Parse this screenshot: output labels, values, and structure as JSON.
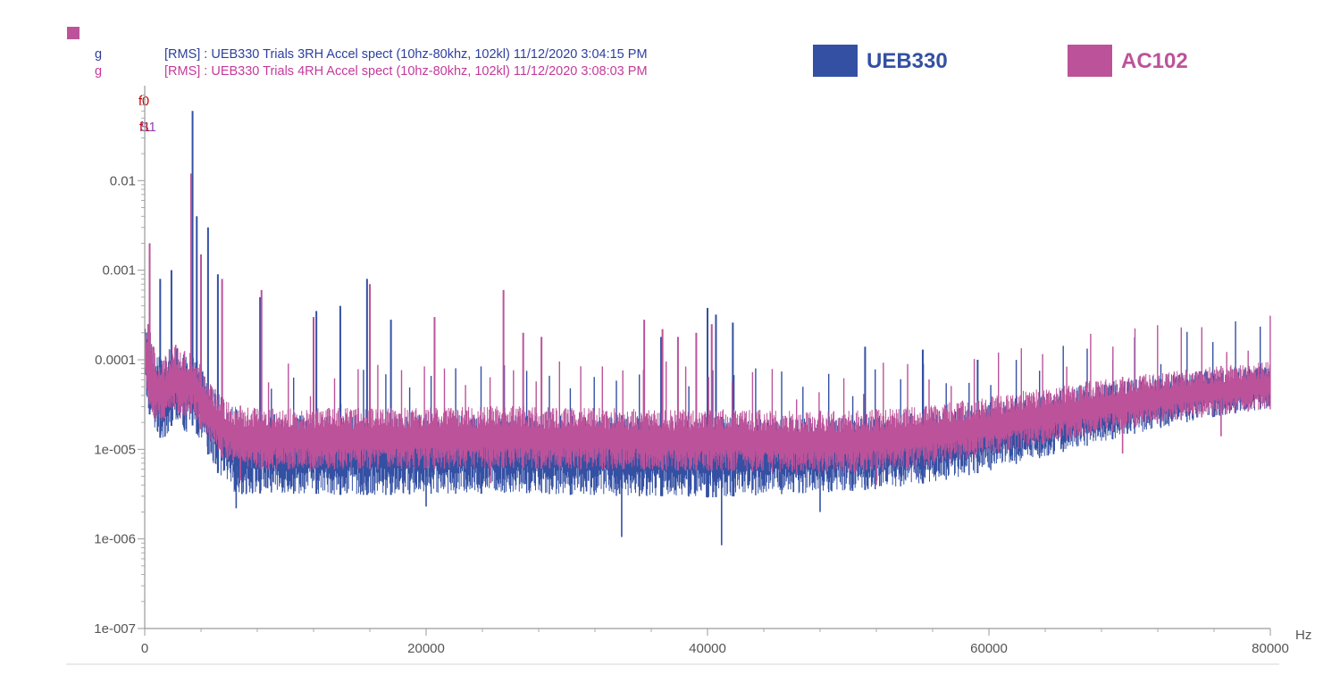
{
  "header": {
    "unit_1": "g",
    "unit_2": "g",
    "trace_1": "[RMS] : UEB330 Trials 3RH Accel spect (10hz-80khz, 102kl) 11/12/2020 3:04:15 PM",
    "trace_2": "[RMS] : UEB330 Trials 4RH Accel spect (10hz-80khz, 102kl) 11/12/2020 3:08:03 PM",
    "marker_f0": "f0",
    "marker_f1": "f1",
    "marker_s1": "S1"
  },
  "colors": {
    "ueb330": "#3450a3",
    "ac102": "#bc539a",
    "header_trace_1": "#2d3f9e",
    "header_trace_2": "#c43a9b",
    "marker_red": "#c00000",
    "marker_purple": "#8a3fb0",
    "axis": "#9a9a9a"
  },
  "chart_data": {
    "type": "line",
    "xlabel": "Hz",
    "ylabel": "",
    "xlim": [
      0,
      80000
    ],
    "ylim": [
      1e-07,
      0.1
    ],
    "y_scale": "log",
    "x_ticks": [
      0,
      20000,
      40000,
      60000,
      80000
    ],
    "x_tick_labels": [
      "0",
      "20000",
      "40000",
      "60000",
      "80000"
    ],
    "y_ticks": [
      1e-07,
      1e-06,
      1e-05,
      0.0001,
      0.001,
      0.01
    ],
    "y_tick_labels": [
      "1e-007",
      "1e-006",
      "1e-005",
      "0.0001",
      "0.001",
      "0.01"
    ],
    "grid": false,
    "legend_position": "top-right",
    "series": [
      {
        "name": "UEB330",
        "color": "#3450a3",
        "x": [
          0,
          200,
          500,
          800,
          1200,
          1600,
          2000,
          2500,
          3000,
          3300,
          3500,
          3800,
          4200,
          4800,
          5500,
          6000,
          6500,
          7000,
          8000,
          9000,
          10000,
          12000,
          14000,
          16000,
          18000,
          20000,
          22000,
          24000,
          26000,
          28000,
          30000,
          32000,
          34000,
          36000,
          38000,
          40000,
          42000,
          44000,
          46000,
          48000,
          50000,
          52000,
          54000,
          56000,
          58000,
          60000,
          62000,
          64000,
          66000,
          68000,
          70000,
          72000,
          74000,
          76000,
          78000,
          80000
        ],
        "low": [
          4e-05,
          3e-05,
          2e-05,
          1.5e-05,
          1.3e-05,
          1.4e-05,
          2e-05,
          1.6e-05,
          1.5e-05,
          2e-05,
          1.7e-05,
          1.4e-05,
          1.1e-05,
          7e-06,
          4.5e-06,
          3.5e-06,
          3.2e-06,
          3e-06,
          3.2e-06,
          3.3e-06,
          3.2e-06,
          3.2e-06,
          3.1e-06,
          3.1e-06,
          3.1e-06,
          3.2e-06,
          3.2e-06,
          3.2e-06,
          3.3e-06,
          3.2e-06,
          3.1e-06,
          3.1e-06,
          3e-06,
          3e-06,
          3e-06,
          2.9e-06,
          3e-06,
          3.1e-06,
          3.2e-06,
          3.3e-06,
          3.4e-06,
          3.6e-06,
          3.9e-06,
          4.3e-06,
          4.9e-06,
          5.8e-06,
          6.9e-06,
          8.3e-06,
          1e-05,
          1.2e-05,
          1.45e-05,
          1.7e-05,
          2e-05,
          2.3e-05,
          2.6e-05,
          2.9e-05
        ],
        "high": [
          0.0004,
          0.0003,
          0.00018,
          0.00012,
          0.0001,
          0.00012,
          0.00015,
          0.00013,
          0.00011,
          0.00012,
          0.00011,
          0.0001,
          8e-05,
          5.5e-05,
          4e-05,
          3.2e-05,
          2.8e-05,
          2.6e-05,
          2.5e-05,
          2.5e-05,
          2.4e-05,
          2.4e-05,
          2.4e-05,
          2.4e-05,
          2.4e-05,
          2.5e-05,
          2.5e-05,
          2.5e-05,
          2.6e-05,
          2.5e-05,
          2.4e-05,
          2.4e-05,
          2.4e-05,
          2.3e-05,
          2.3e-05,
          2.3e-05,
          2.3e-05,
          2.3e-05,
          2.3e-05,
          2.3e-05,
          2.3e-05,
          2.4e-05,
          2.5e-05,
          2.7e-05,
          3e-05,
          3.4e-05,
          3.8e-05,
          4.3e-05,
          4.9e-05,
          5.5e-05,
          6.1e-05,
          6.7e-05,
          7.3e-05,
          7.9e-05,
          8.5e-05,
          9e-05
        ],
        "peaks": [
          {
            "x": 350,
            "y": 0.0015
          },
          {
            "x": 1100,
            "y": 0.0008
          },
          {
            "x": 1900,
            "y": 0.001
          },
          {
            "x": 3400,
            "y": 0.06
          },
          {
            "x": 3700,
            "y": 0.004
          },
          {
            "x": 4500,
            "y": 0.003
          },
          {
            "x": 5200,
            "y": 0.0009
          },
          {
            "x": 8200,
            "y": 0.0005
          },
          {
            "x": 15800,
            "y": 0.0008
          },
          {
            "x": 12200,
            "y": 0.00035
          },
          {
            "x": 13900,
            "y": 0.0004
          },
          {
            "x": 17500,
            "y": 0.00028
          },
          {
            "x": 36700,
            "y": 0.00018
          },
          {
            "x": 40000,
            "y": 0.00038
          },
          {
            "x": 40600,
            "y": 0.00032
          },
          {
            "x": 41800,
            "y": 0.00026
          },
          {
            "x": 51200,
            "y": 0.00014
          },
          {
            "x": 55300,
            "y": 0.00013
          },
          {
            "x": 59200,
            "y": 0.0001
          }
        ],
        "dips": [
          {
            "x": 6500,
            "y": 2.2e-06
          },
          {
            "x": 20000,
            "y": 2.3e-06
          },
          {
            "x": 33900,
            "y": 1.05e-06
          },
          {
            "x": 41000,
            "y": 8.5e-07
          },
          {
            "x": 48000,
            "y": 2e-06
          }
        ]
      },
      {
        "name": "AC102",
        "color": "#bc539a",
        "x": [
          0,
          200,
          500,
          800,
          1200,
          1600,
          2000,
          2500,
          3000,
          3300,
          3500,
          3800,
          4200,
          4800,
          5500,
          6000,
          6500,
          7000,
          8000,
          9000,
          10000,
          12000,
          14000,
          16000,
          18000,
          20000,
          22000,
          24000,
          26000,
          28000,
          30000,
          32000,
          34000,
          36000,
          38000,
          40000,
          42000,
          44000,
          46000,
          48000,
          50000,
          52000,
          54000,
          56000,
          58000,
          60000,
          62000,
          64000,
          66000,
          68000,
          70000,
          72000,
          74000,
          76000,
          78000,
          80000
        ],
        "low": [
          5e-05,
          4e-05,
          2.5e-05,
          2e-05,
          1.8e-05,
          2e-05,
          2.5e-05,
          2.2e-05,
          2e-05,
          2.5e-05,
          2.3e-05,
          1.9e-05,
          1.5e-05,
          1.1e-05,
          8e-06,
          7e-06,
          6.5e-06,
          6.3e-06,
          6e-06,
          6e-06,
          6e-06,
          6e-06,
          6e-06,
          6e-06,
          6e-06,
          6.1e-06,
          6.1e-06,
          6.1e-06,
          6.2e-06,
          6.1e-06,
          6e-06,
          6e-06,
          6e-06,
          5.9e-06,
          5.8e-06,
          5.8e-06,
          5.7e-06,
          5.6e-06,
          5.5e-06,
          5.4e-06,
          5.4e-06,
          5.6e-06,
          6e-06,
          6.6e-06,
          7.5e-06,
          8.6e-06,
          1e-05,
          1.15e-05,
          1.33e-05,
          1.52e-05,
          1.72e-05,
          1.93e-05,
          2.15e-05,
          2.38e-05,
          2.6e-05,
          2.8e-05
        ],
        "high": [
          0.00035,
          0.00028,
          0.00017,
          0.00012,
          0.0001,
          0.00012,
          0.00016,
          0.00014,
          0.00012,
          0.00013,
          0.00012,
          0.0001,
          8e-05,
          5.5e-05,
          4e-05,
          3.5e-05,
          3.2e-05,
          3e-05,
          2.9e-05,
          2.9e-05,
          2.9e-05,
          2.9e-05,
          2.9e-05,
          2.9e-05,
          2.9e-05,
          3e-05,
          3e-05,
          3e-05,
          3.1e-05,
          3e-05,
          2.9e-05,
          2.9e-05,
          2.9e-05,
          2.8e-05,
          2.8e-05,
          2.8e-05,
          2.8e-05,
          2.8e-05,
          2.7e-05,
          2.7e-05,
          2.7e-05,
          2.8e-05,
          3e-05,
          3.2e-05,
          3.5e-05,
          3.9e-05,
          4.4e-05,
          4.9e-05,
          5.5e-05,
          6e-05,
          6.6e-05,
          7.2e-05,
          7.8e-05,
          8.4e-05,
          9e-05,
          9.5e-05
        ],
        "peaks": [
          {
            "x": 350,
            "y": 0.002
          },
          {
            "x": 3300,
            "y": 0.012
          },
          {
            "x": 4000,
            "y": 0.0015
          },
          {
            "x": 5500,
            "y": 0.0008
          },
          {
            "x": 8300,
            "y": 0.0006
          },
          {
            "x": 12000,
            "y": 0.0003
          },
          {
            "x": 16000,
            "y": 0.0007
          },
          {
            "x": 20600,
            "y": 0.0003
          },
          {
            "x": 25500,
            "y": 0.0006
          },
          {
            "x": 26900,
            "y": 0.0002
          },
          {
            "x": 28200,
            "y": 0.00018
          },
          {
            "x": 35500,
            "y": 0.00028
          },
          {
            "x": 36800,
            "y": 0.00022
          },
          {
            "x": 37900,
            "y": 0.00018
          },
          {
            "x": 39200,
            "y": 0.0002
          },
          {
            "x": 40300,
            "y": 0.00025
          }
        ],
        "dips": [
          {
            "x": 6800,
            "y": 4.5e-06
          },
          {
            "x": 24600,
            "y": 4.2e-06
          },
          {
            "x": 52000,
            "y": 4e-06
          },
          {
            "x": 69500,
            "y": 9e-06
          },
          {
            "x": 76500,
            "y": 1.4e-05
          }
        ]
      }
    ]
  }
}
